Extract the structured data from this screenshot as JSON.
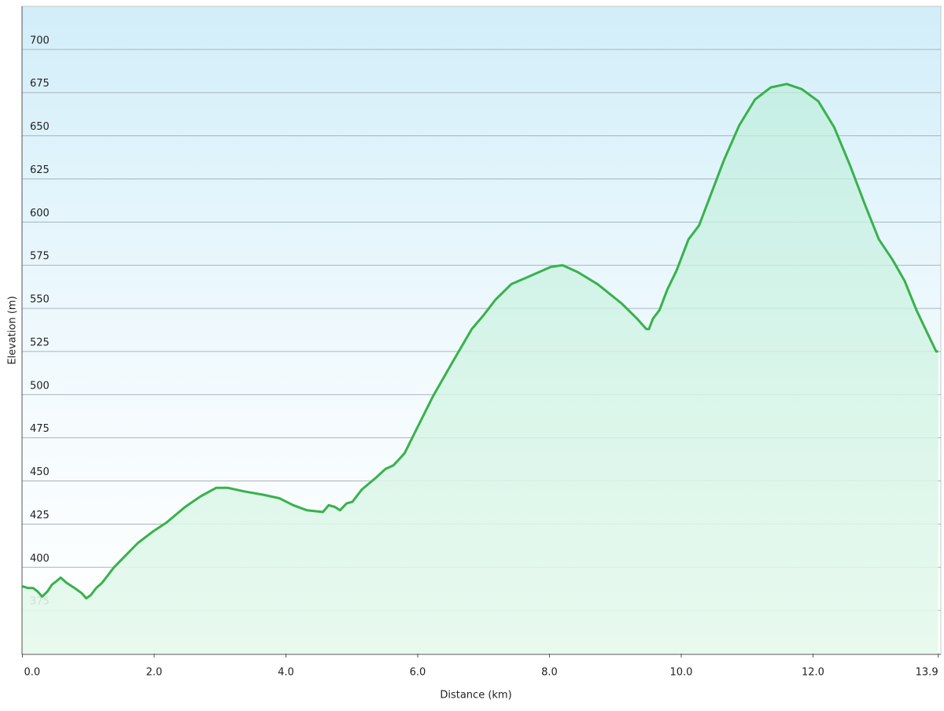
{
  "chart_data": {
    "type": "area-line",
    "x_label": "Distance  (km)",
    "y_label": "Elevation (m)",
    "color": "#37b24a",
    "grid": true,
    "xlim": [
      0,
      13.9
    ],
    "ylim": [
      350,
      725
    ],
    "xticks": [
      {
        "value": 0,
        "label": "0.0"
      },
      {
        "value": 2,
        "label": "2.0"
      },
      {
        "value": 4,
        "label": "4.0"
      },
      {
        "value": 6,
        "label": "6.0"
      },
      {
        "value": 8,
        "label": "8.0"
      },
      {
        "value": 10,
        "label": "10.0"
      },
      {
        "value": 12,
        "label": "12.0"
      },
      13.9
    ],
    "yticks": [
      375,
      400,
      425,
      450,
      475,
      500,
      525,
      550,
      575,
      600,
      625,
      650,
      675,
      700
    ],
    "x": [
      0,
      0.08,
      0.16,
      0.23,
      0.3,
      0.38,
      0.45,
      0.52,
      0.58,
      0.67,
      0.79,
      0.9,
      0.97,
      1.04,
      1.12,
      1.21,
      1.39,
      1.57,
      1.75,
      1.99,
      2.19,
      2.47,
      2.7,
      2.94,
      3.12,
      3.36,
      3.66,
      3.9,
      4.11,
      4.32,
      4.56,
      4.65,
      4.74,
      4.82,
      4.92,
      5.01,
      5.15,
      5.37,
      5.51,
      5.63,
      5.8,
      5.93,
      6.23,
      6.53,
      6.82,
      7.0,
      7.18,
      7.42,
      7.66,
      8.02,
      8.2,
      8.43,
      8.73,
      9.09,
      9.33,
      9.47,
      9.51,
      9.57,
      9.67,
      9.79,
      9.93,
      10.11,
      10.27,
      10.41,
      10.65,
      10.88,
      11.12,
      11.36,
      11.6,
      11.83,
      12.08,
      12.32,
      12.56,
      12.79,
      13.0,
      13.21,
      13.39,
      13.57,
      13.72,
      13.87,
      13.9
    ],
    "values": [
      389,
      388,
      388,
      386,
      383,
      386,
      390,
      392,
      394,
      391,
      388,
      385,
      382,
      384,
      388,
      391,
      400,
      407,
      414,
      421,
      426,
      435,
      441,
      446,
      446,
      444,
      442,
      440,
      436,
      433,
      432,
      436,
      435,
      433,
      437,
      438,
      445,
      452,
      457,
      459,
      466,
      476,
      499,
      519,
      538,
      546,
      555,
      564,
      568,
      574,
      575,
      571,
      564,
      553,
      544,
      538,
      538,
      544,
      549,
      561,
      572,
      590,
      598,
      612,
      636,
      656,
      671,
      678,
      680,
      677,
      670,
      655,
      633,
      610,
      590,
      578,
      566,
      549,
      537,
      525,
      525
    ]
  }
}
